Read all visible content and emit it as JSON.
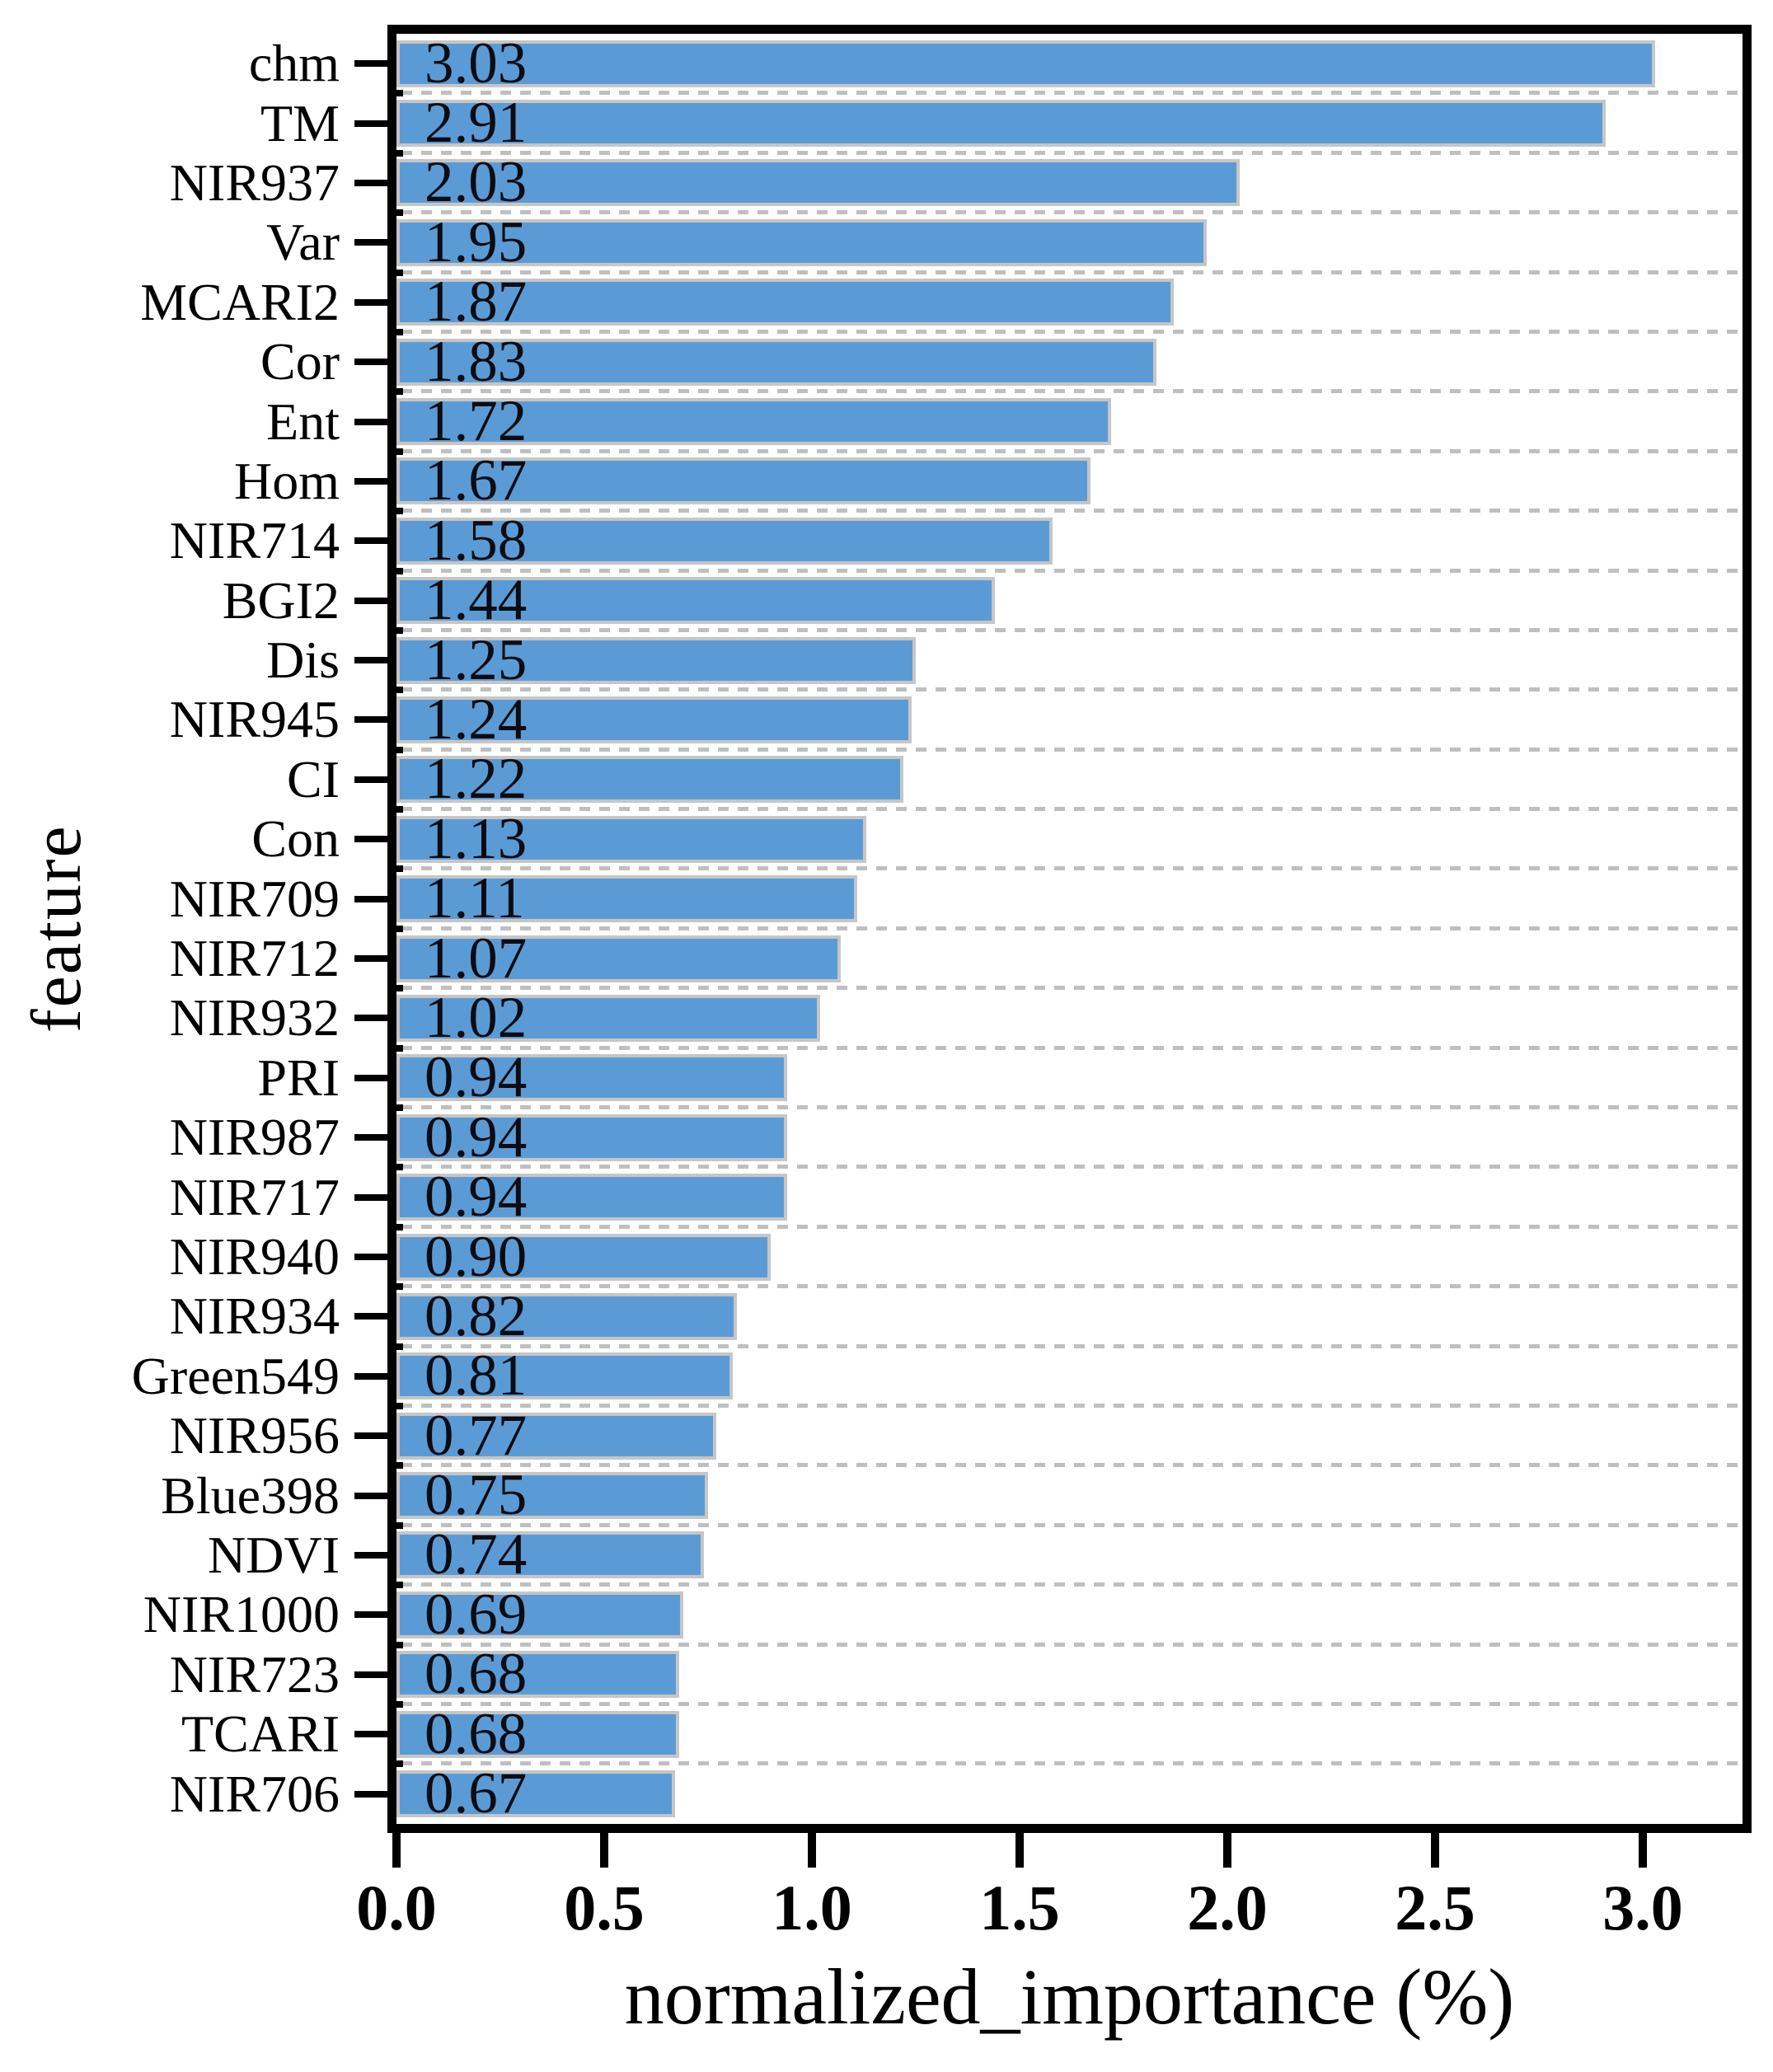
{
  "chart_data": {
    "type": "bar",
    "orientation": "horizontal",
    "title": "",
    "xlabel": "normalized_importance (%)",
    "ylabel": "feature",
    "xlim": [
      0,
      3.24
    ],
    "grid": "dashed-horizontal-between-bars",
    "legend": "none",
    "xticks": [
      "0.0",
      "0.5",
      "1.0",
      "1.5",
      "2.0",
      "2.5",
      "3.0"
    ],
    "xtick_values": [
      0,
      0.5,
      1.0,
      1.5,
      2.0,
      2.5,
      3.0
    ],
    "categories": [
      "chm",
      "TM",
      "NIR937",
      "Var",
      "MCARI2",
      "Cor",
      "Ent",
      "Hom",
      "NIR714",
      "BGI2",
      "Dis",
      "NIR945",
      "CI",
      "Con",
      "NIR709",
      "NIR712",
      "NIR932",
      "PRI",
      "NIR987",
      "NIR717",
      "NIR940",
      "NIR934",
      "Green549",
      "NIR956",
      "Blue398",
      "NDVI",
      "NIR1000",
      "NIR723",
      "TCARI",
      "NIR706"
    ],
    "values": [
      3.03,
      2.91,
      2.03,
      1.95,
      1.87,
      1.83,
      1.72,
      1.67,
      1.58,
      1.44,
      1.25,
      1.24,
      1.22,
      1.13,
      1.11,
      1.07,
      1.02,
      0.94,
      0.94,
      0.94,
      0.9,
      0.82,
      0.81,
      0.77,
      0.75,
      0.74,
      0.69,
      0.68,
      0.68,
      0.67
    ],
    "value_labels": [
      "3.03",
      "2.91",
      "2.03",
      "1.95",
      "1.87",
      "1.83",
      "1.72",
      "1.67",
      "1.58",
      "1.44",
      "1.25",
      "1.24",
      "1.22",
      "1.13",
      "1.11",
      "1.07",
      "1.02",
      "0.94",
      "0.94",
      "0.94",
      "0.90",
      "0.82",
      "0.81",
      "0.77",
      "0.75",
      "0.74",
      "0.69",
      "0.68",
      "0.68",
      "0.67"
    ],
    "colors": {
      "bar_fill": "#5B9BD5",
      "bar_border": "#C6C6C6",
      "gridline": "#BFBFBF",
      "frame": "#000000",
      "text": "#000000"
    }
  }
}
